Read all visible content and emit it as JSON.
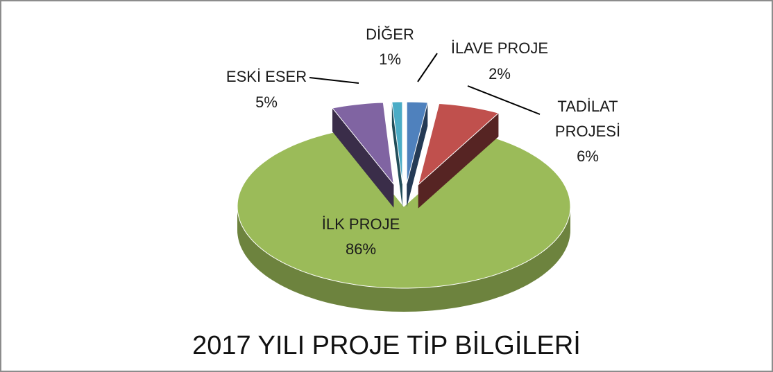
{
  "chart_data": {
    "type": "pie3d",
    "title": "2017 YILI PROJE TİP BİLGİLERİ",
    "categories": [
      "İLAVE PROJE",
      "TADİLAT PROJESİ",
      "İLK PROJE",
      "ESKİ ESER",
      "DİĞER"
    ],
    "values": [
      2,
      6,
      86,
      5,
      1
    ],
    "value_labels": [
      "2%",
      "6%",
      "86%",
      "5%",
      "1%"
    ],
    "colors": [
      "#4f81bd",
      "#c0504d",
      "#9bbb59",
      "#8064a2",
      "#4bacc6"
    ]
  }
}
